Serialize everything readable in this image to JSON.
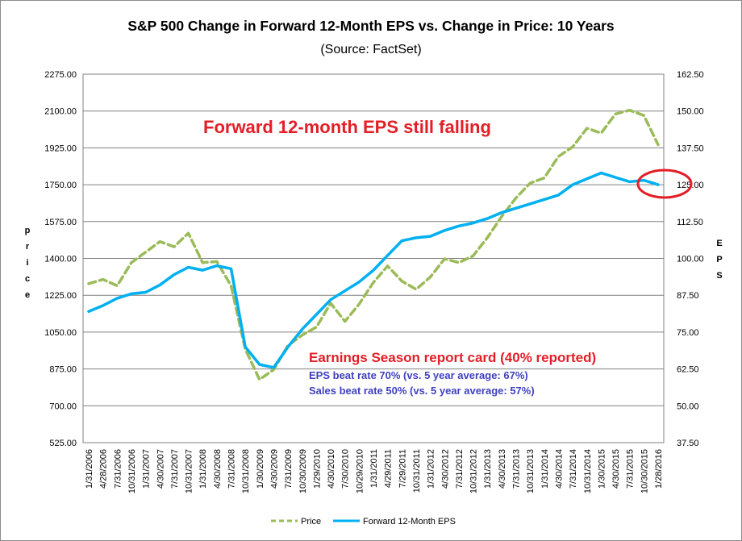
{
  "chart_data": {
    "type": "line",
    "title": "S&P 500 Change in Forward 12-Month EPS vs. Change in Price: 10 Years",
    "subtitle": "(Source: FactSet)",
    "ylabel_left": "Price",
    "ylabel_right": "EPS",
    "ylim_left": [
      525,
      2275
    ],
    "ylim_right": [
      37.5,
      162.5
    ],
    "left_ticks": [
      "525.00",
      "700.00",
      "875.00",
      "1050.00",
      "1225.00",
      "1400.00",
      "1575.00",
      "1750.00",
      "1925.00",
      "2100.00",
      "2275.00"
    ],
    "right_ticks": [
      "37.50",
      "50.00",
      "62.50",
      "75.00",
      "87.50",
      "100.00",
      "112.50",
      "125.00",
      "137.50",
      "150.00",
      "162.50"
    ],
    "categories": [
      "1/31/2006",
      "4/28/2006",
      "7/31/2006",
      "10/31/2006",
      "1/31/2007",
      "4/30/2007",
      "7/31/2007",
      "10/31/2007",
      "1/31/2008",
      "4/30/2008",
      "7/31/2008",
      "10/31/2008",
      "1/30/2009",
      "4/30/2009",
      "7/31/2009",
      "10/30/2009",
      "1/29/2010",
      "4/30/2010",
      "7/30/2010",
      "10/29/2010",
      "1/31/2011",
      "4/29/2011",
      "7/29/2011",
      "10/31/2011",
      "1/31/2012",
      "4/30/2012",
      "7/31/2012",
      "10/31/2012",
      "1/31/2013",
      "4/30/2013",
      "7/31/2013",
      "10/31/2013",
      "1/31/2014",
      "4/30/2014",
      "7/31/2014",
      "10/31/2014",
      "1/30/2015",
      "4/30/2015",
      "7/31/2015",
      "10/30/2015",
      "1/28/2016"
    ],
    "series": [
      {
        "name": "Price",
        "axis": "left",
        "color": "#9BBB59",
        "style": "dashed",
        "values": [
          1280,
          1300,
          1270,
          1380,
          1430,
          1480,
          1455,
          1520,
          1380,
          1385,
          1270,
          969,
          825,
          872,
          987,
          1036,
          1074,
          1187,
          1101,
          1183,
          1286,
          1364,
          1292,
          1253,
          1312,
          1398,
          1380,
          1412,
          1498,
          1598,
          1686,
          1757,
          1782,
          1884,
          1930,
          2018,
          1995,
          2086,
          2104,
          2079,
          1940
        ]
      },
      {
        "name": "Forward 12-Month EPS",
        "axis": "right",
        "color": "#00B0F0",
        "style": "solid",
        "values": [
          82,
          84,
          86.5,
          88,
          88.5,
          91,
          94.5,
          97,
          96,
          97.5,
          96.5,
          70,
          64,
          63,
          70,
          76,
          81,
          86,
          89,
          92,
          96,
          101,
          106,
          107,
          107.5,
          109.5,
          111,
          112,
          113.5,
          115.5,
          117,
          118.5,
          120,
          121.5,
          125,
          127,
          129,
          127.5,
          126,
          126.5,
          125
        ]
      }
    ],
    "annotations": {
      "headline": "Forward 12-month EPS still falling",
      "report_card_title": "Earnings Season report card (40% reported)",
      "eps_beat": "EPS beat rate 70% (vs. 5 year average: 67%)",
      "sales_beat": "Sales beat rate 50% (vs. 5 year average: 57%)"
    },
    "legend": {
      "position": "bottom-center",
      "entries": [
        "Price",
        "Forward 12-Month EPS"
      ]
    },
    "colors": {
      "headline": "#E41E26",
      "report_card": "#E41E26",
      "beat_rates": "#4040C0",
      "circle": "#E41E26",
      "grid": "#808080"
    }
  }
}
